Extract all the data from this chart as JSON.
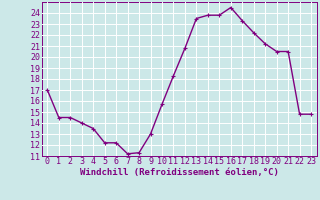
{
  "x": [
    0,
    1,
    2,
    3,
    4,
    5,
    6,
    7,
    8,
    9,
    10,
    11,
    12,
    13,
    14,
    15,
    16,
    17,
    18,
    19,
    20,
    21,
    22,
    23
  ],
  "y": [
    17.0,
    14.5,
    14.5,
    14.0,
    13.5,
    12.2,
    12.2,
    11.2,
    11.3,
    13.0,
    15.7,
    18.3,
    20.8,
    23.5,
    23.8,
    23.8,
    24.5,
    23.3,
    22.2,
    21.2,
    20.5,
    20.5,
    14.8,
    14.8
  ],
  "xlabel": "Windchill (Refroidissement éolien,°C)",
  "xlim": [
    -0.5,
    23.5
  ],
  "ylim": [
    11,
    25
  ],
  "yticks": [
    11,
    12,
    13,
    14,
    15,
    16,
    17,
    18,
    19,
    20,
    21,
    22,
    23,
    24
  ],
  "xticks": [
    0,
    1,
    2,
    3,
    4,
    5,
    6,
    7,
    8,
    9,
    10,
    11,
    12,
    13,
    14,
    15,
    16,
    17,
    18,
    19,
    20,
    21,
    22,
    23
  ],
  "line_color": "#800080",
  "bg_color": "#cce8e8",
  "grid_color": "#ffffff",
  "label_color": "#800080",
  "xlabel_fontsize": 6.5,
  "tick_fontsize": 6.0,
  "linewidth": 1.0,
  "marker_size": 2.5
}
